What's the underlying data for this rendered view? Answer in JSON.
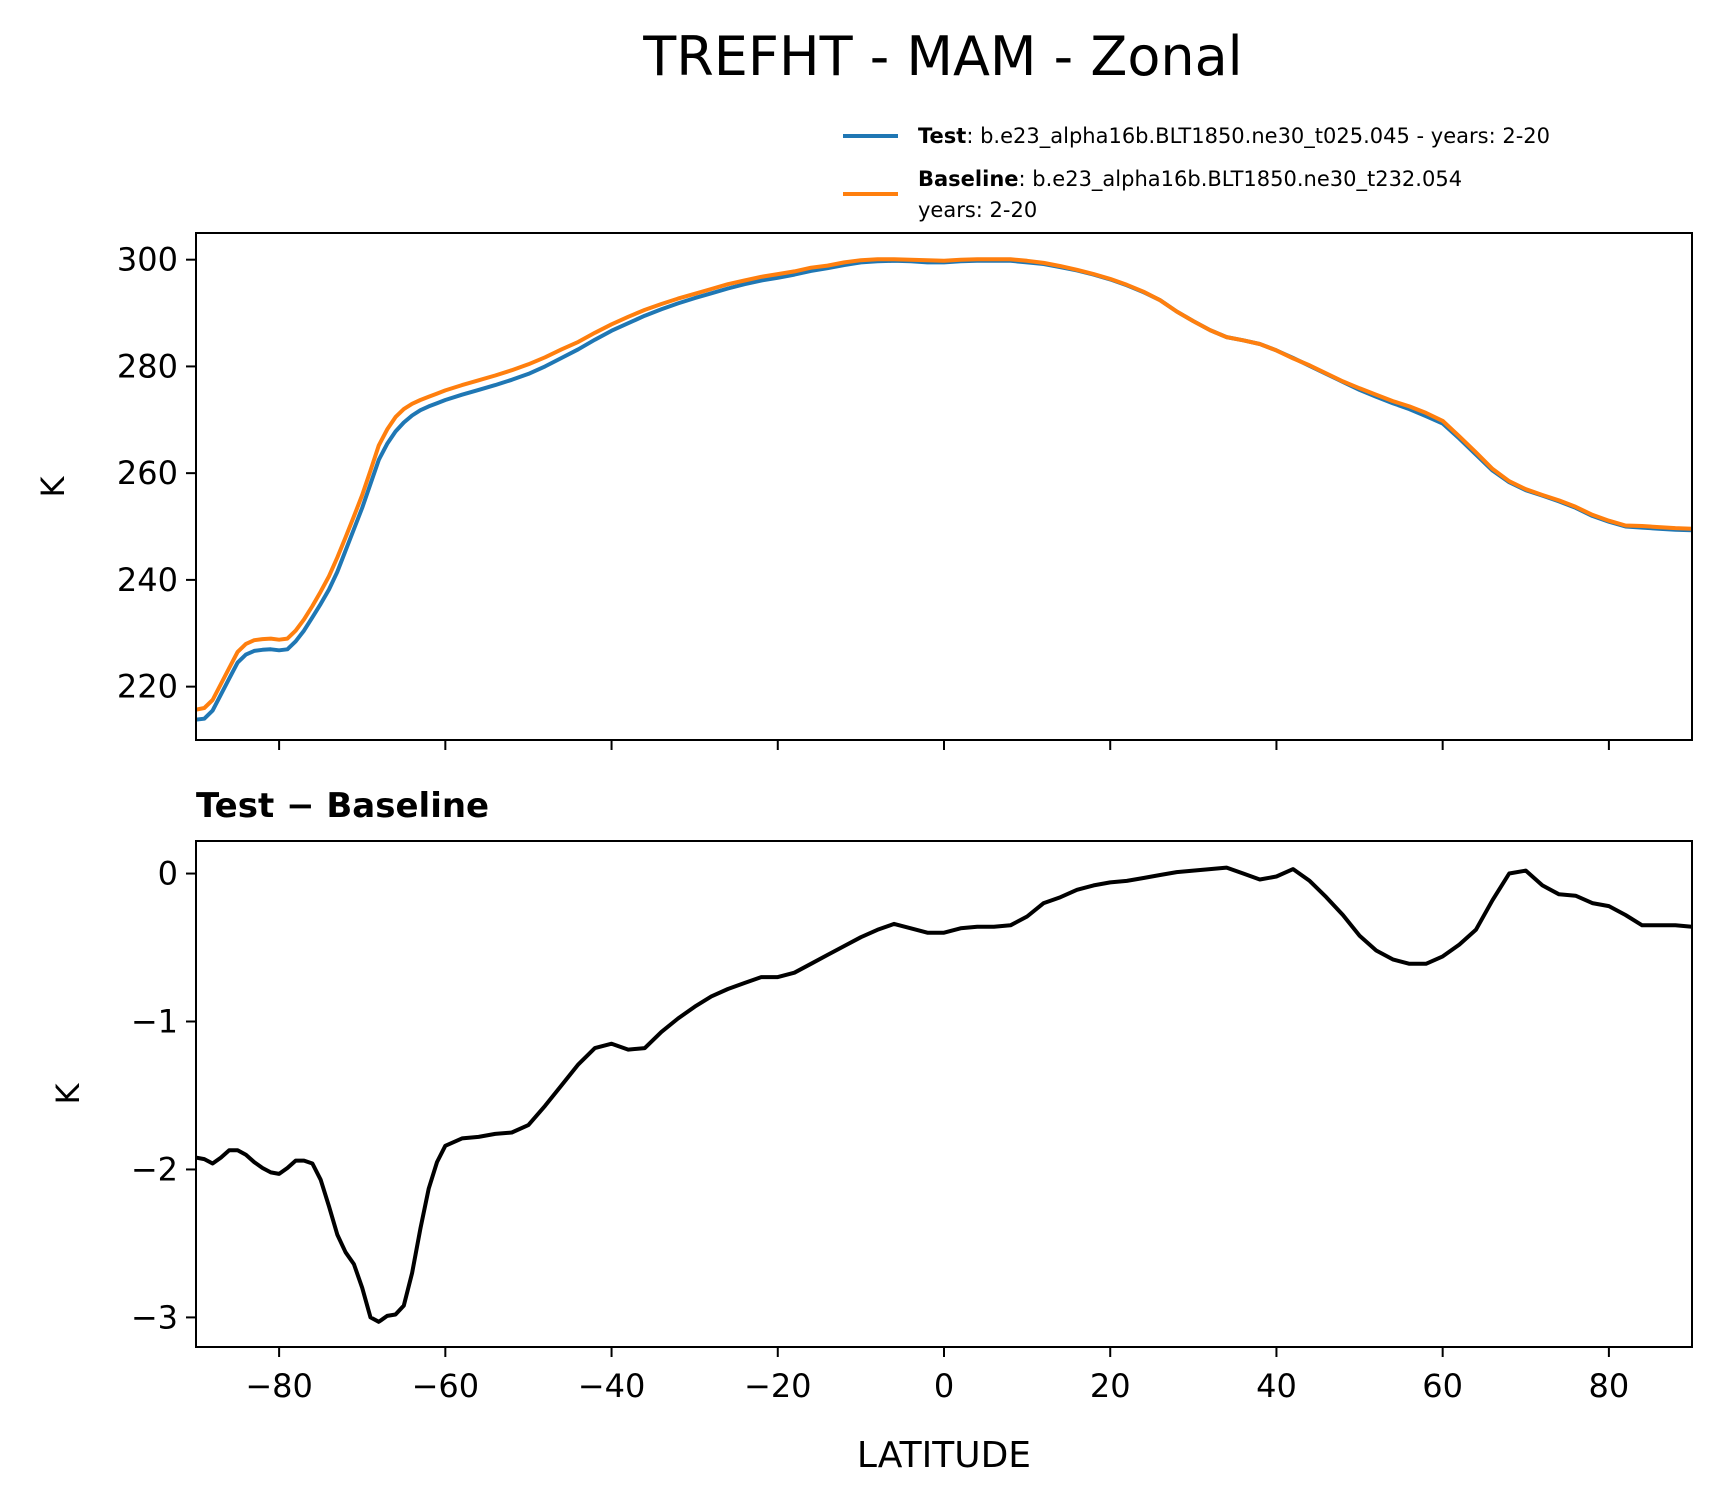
{
  "title": "TREFHT - MAM - Zonal",
  "legend": [
    {
      "bold": "Test",
      "sep": ": ",
      "line1": "b.e23_alpha16b.BLT1850.ne30_t025.045 - years: 2-20",
      "line2": "",
      "color": "#1f77b4"
    },
    {
      "bold": "Baseline",
      "sep": ": ",
      "line1": "b.e23_alpha16b.BLT1850.ne30_t232.054",
      "line2": "years: 2-20",
      "color": "#ff7f0e"
    }
  ],
  "diff_title": "Test − Baseline",
  "xlabel": "LATITUDE",
  "chart_data": [
    {
      "type": "line",
      "title": "",
      "ylabel": "K",
      "xlim": [
        -90,
        90
      ],
      "ylim": [
        210,
        305
      ],
      "xticks": [
        -80,
        -60,
        -40,
        -20,
        0,
        20,
        40,
        60,
        80
      ],
      "xtick_labels_shown": false,
      "yticks": [
        220,
        240,
        260,
        280,
        300
      ],
      "ytick_labels": [
        "220",
        "240",
        "260",
        "280",
        "300"
      ],
      "x": [
        -90,
        -89,
        -88,
        -87,
        -86,
        -85,
        -84,
        -83,
        -82,
        -81,
        -80,
        -79,
        -78,
        -77,
        -76,
        -75,
        -74,
        -73,
        -72,
        -71,
        -70,
        -69,
        -68,
        -67,
        -66,
        -65,
        -64,
        -63,
        -62,
        -61,
        -60,
        -58,
        -56,
        -54,
        -52,
        -50,
        -48,
        -46,
        -44,
        -42,
        -40,
        -38,
        -36,
        -34,
        -32,
        -30,
        -28,
        -26,
        -24,
        -22,
        -20,
        -18,
        -16,
        -14,
        -12,
        -10,
        -8,
        -6,
        -4,
        -2,
        0,
        2,
        4,
        6,
        8,
        10,
        12,
        14,
        16,
        18,
        20,
        22,
        24,
        26,
        28,
        30,
        32,
        34,
        36,
        38,
        40,
        42,
        44,
        46,
        48,
        50,
        52,
        54,
        56,
        58,
        60,
        62,
        64,
        66,
        68,
        70,
        72,
        74,
        76,
        78,
        80,
        82,
        84,
        86,
        88,
        90
      ],
      "series": [
        {
          "name": "Test",
          "color": "#1f77b4",
          "values": [
            213.8,
            214.0,
            215.5,
            218.5,
            221.5,
            224.5,
            226.0,
            226.7,
            226.9,
            227.0,
            226.8,
            227.0,
            228.5,
            230.5,
            233.0,
            235.5,
            238.2,
            241.5,
            245.5,
            249.5,
            253.5,
            258.0,
            262.5,
            265.5,
            267.8,
            269.5,
            270.8,
            271.8,
            272.5,
            273.1,
            273.7,
            274.7,
            275.6,
            276.5,
            277.5,
            278.6,
            280.0,
            281.6,
            283.2,
            285.0,
            286.7,
            288.1,
            289.5,
            290.7,
            291.8,
            292.8,
            293.7,
            294.6,
            295.4,
            296.1,
            296.6,
            297.2,
            297.9,
            298.4,
            299.0,
            299.5,
            299.7,
            299.8,
            299.7,
            299.5,
            299.5,
            299.7,
            299.8,
            299.8,
            299.8,
            299.5,
            299.2,
            298.6,
            298.0,
            297.2,
            296.3,
            295.2,
            293.9,
            292.4,
            290.3,
            288.5,
            286.8,
            285.5,
            284.9,
            284.2,
            283.0,
            281.6,
            280.1,
            278.6,
            277.1,
            275.6,
            274.3,
            273.1,
            272.0,
            270.7,
            269.3,
            266.5,
            263.5,
            260.5,
            258.3,
            256.8,
            255.8,
            254.7,
            253.5,
            252.0,
            250.9,
            250.0,
            249.8,
            249.6,
            249.4,
            249.3
          ]
        },
        {
          "name": "Baseline",
          "color": "#ff7f0e",
          "values": [
            215.7,
            216.0,
            217.5,
            220.5,
            223.5,
            226.5,
            228.0,
            228.7,
            228.9,
            229.0,
            228.8,
            229.0,
            230.5,
            232.6,
            235.1,
            237.8,
            240.7,
            244.2,
            248.0,
            251.9,
            255.9,
            260.5,
            265.2,
            268.2,
            270.5,
            272.0,
            273.0,
            273.7,
            274.3,
            274.9,
            275.5,
            276.5,
            277.4,
            278.3,
            279.3,
            280.4,
            281.7,
            283.2,
            284.6,
            286.3,
            287.9,
            289.3,
            290.6,
            291.7,
            292.7,
            293.6,
            294.5,
            295.4,
            296.1,
            296.8,
            297.3,
            297.8,
            298.5,
            298.9,
            299.5,
            299.9,
            300.1,
            300.1,
            300.0,
            299.9,
            299.8,
            300.0,
            300.1,
            300.1,
            300.1,
            299.8,
            299.4,
            298.8,
            298.1,
            297.3,
            296.4,
            295.3,
            294.0,
            292.4,
            290.3,
            288.5,
            286.8,
            285.5,
            284.9,
            284.2,
            283.0,
            281.5,
            280.2,
            278.7,
            277.2,
            275.9,
            274.7,
            273.5,
            272.5,
            271.3,
            269.8,
            266.9,
            263.9,
            260.8,
            258.5,
            257.0,
            255.9,
            254.9,
            253.7,
            252.2,
            251.1,
            250.2,
            250.1,
            249.9,
            249.7,
            249.6
          ]
        }
      ]
    },
    {
      "type": "line",
      "title": "Test − Baseline",
      "ylabel": "K",
      "xlabel": "LATITUDE",
      "xlim": [
        -90,
        90
      ],
      "ylim": [
        -3.2,
        0.22
      ],
      "xticks": [
        -80,
        -60,
        -40,
        -20,
        0,
        20,
        40,
        60,
        80
      ],
      "xtick_labels": [
        "−80",
        "−60",
        "−40",
        "−20",
        "0",
        "20",
        "40",
        "60",
        "80"
      ],
      "yticks": [
        -3,
        -2,
        -1,
        0
      ],
      "ytick_labels": [
        "−3",
        "−2",
        "−1",
        "0"
      ],
      "x": [
        -90,
        -89,
        -88,
        -87,
        -86,
        -85,
        -84,
        -83,
        -82,
        -81,
        -80,
        -79,
        -78,
        -77,
        -76,
        -75,
        -74,
        -73,
        -72,
        -71,
        -70,
        -69,
        -68,
        -67,
        -66,
        -65,
        -64,
        -63,
        -62,
        -61,
        -60,
        -58,
        -56,
        -54,
        -52,
        -50,
        -48,
        -46,
        -44,
        -42,
        -40,
        -38,
        -36,
        -34,
        -32,
        -30,
        -28,
        -26,
        -24,
        -22,
        -20,
        -18,
        -16,
        -14,
        -12,
        -10,
        -8,
        -6,
        -4,
        -2,
        0,
        2,
        4,
        6,
        8,
        10,
        12,
        14,
        16,
        18,
        20,
        22,
        24,
        26,
        28,
        30,
        32,
        34,
        36,
        38,
        40,
        42,
        44,
        46,
        48,
        50,
        52,
        54,
        56,
        58,
        60,
        62,
        64,
        66,
        68,
        70,
        72,
        74,
        76,
        78,
        80,
        82,
        84,
        86,
        88,
        90
      ],
      "series": [
        {
          "name": "Test − Baseline",
          "color": "#000000",
          "values": [
            -1.92,
            -1.93,
            -1.96,
            -1.92,
            -1.87,
            -1.87,
            -1.9,
            -1.95,
            -1.99,
            -2.02,
            -2.03,
            -1.99,
            -1.94,
            -1.94,
            -1.96,
            -2.07,
            -2.25,
            -2.44,
            -2.56,
            -2.64,
            -2.8,
            -3.0,
            -3.03,
            -2.99,
            -2.98,
            -2.92,
            -2.7,
            -2.4,
            -2.13,
            -1.95,
            -1.84,
            -1.79,
            -1.78,
            -1.76,
            -1.75,
            -1.7,
            -1.57,
            -1.43,
            -1.29,
            -1.18,
            -1.15,
            -1.19,
            -1.18,
            -1.07,
            -0.98,
            -0.9,
            -0.83,
            -0.78,
            -0.74,
            -0.7,
            -0.7,
            -0.67,
            -0.61,
            -0.55,
            -0.49,
            -0.43,
            -0.38,
            -0.34,
            -0.37,
            -0.4,
            -0.4,
            -0.37,
            -0.36,
            -0.36,
            -0.35,
            -0.29,
            -0.2,
            -0.16,
            -0.11,
            -0.08,
            -0.06,
            -0.05,
            -0.03,
            -0.01,
            0.01,
            0.02,
            0.03,
            0.04,
            0.0,
            -0.04,
            -0.02,
            0.03,
            -0.05,
            -0.16,
            -0.28,
            -0.42,
            -0.52,
            -0.58,
            -0.61,
            -0.61,
            -0.56,
            -0.48,
            -0.38,
            -0.18,
            0.0,
            0.02,
            -0.08,
            -0.14,
            -0.15,
            -0.2,
            -0.22,
            -0.28,
            -0.35,
            -0.35,
            -0.35,
            -0.36
          ]
        }
      ]
    }
  ]
}
